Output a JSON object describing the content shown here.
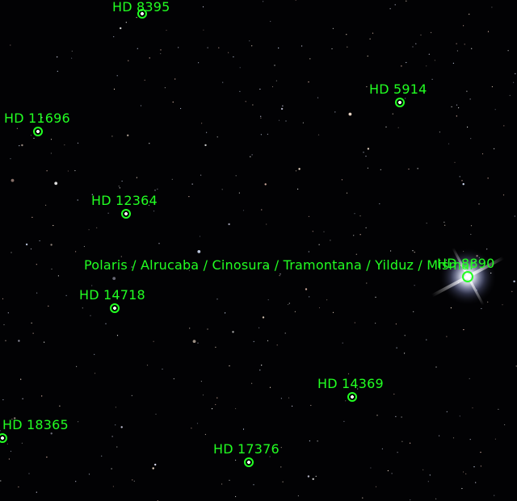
{
  "image": {
    "background_color": "#020204",
    "annotation_color": "#22ff22",
    "content": "star field"
  },
  "stars": [
    {
      "label": "HD 8395"
    },
    {
      "label": "HD 5914"
    },
    {
      "label": "HD 11696"
    },
    {
      "label": "HD 12364"
    },
    {
      "label": "Polaris / Alrucaba / Cinosura / Tramontana / Yilduz / Mismar"
    },
    {
      "label": "HD 8890"
    },
    {
      "label": "HD 14718"
    },
    {
      "label": "HD 14369"
    },
    {
      "label": "HD 18365"
    },
    {
      "label": "HD 17376"
    }
  ]
}
